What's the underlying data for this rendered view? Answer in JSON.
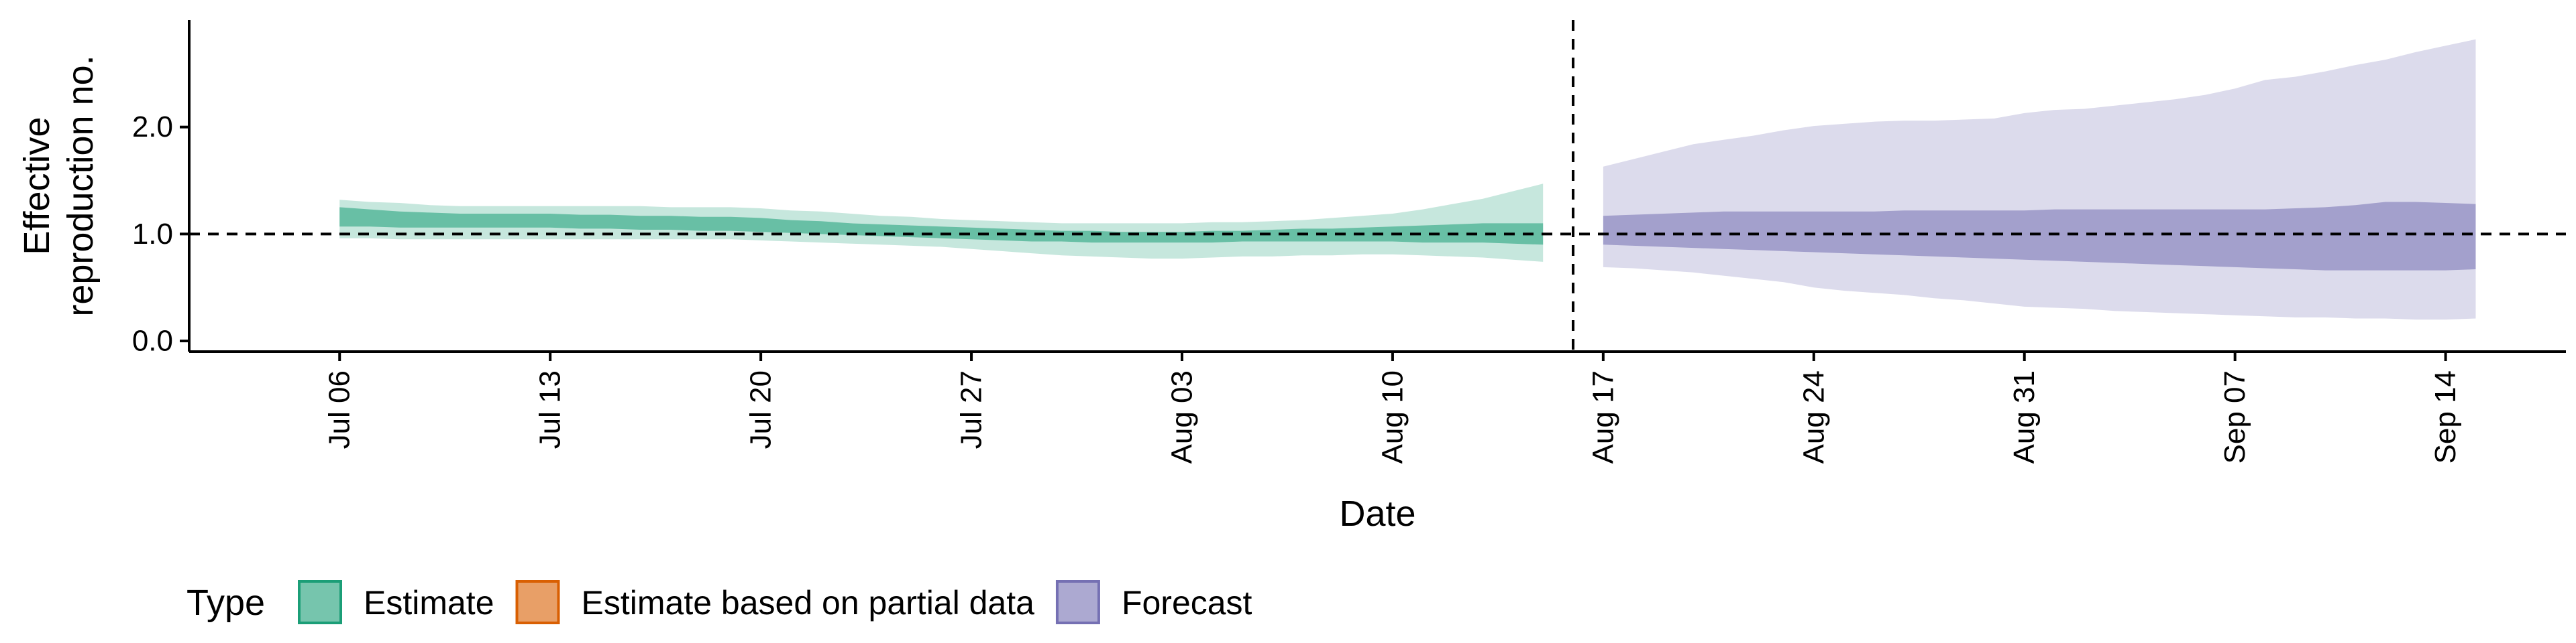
{
  "chart_data": {
    "type": "area",
    "ylabel_lines": [
      "Effective",
      "reproduction no."
    ],
    "xlabel": "Date",
    "ylim": [
      -0.1,
      3.0
    ],
    "y_ticks": [
      0.0,
      1.0,
      2.0
    ],
    "y_tick_labels": [
      "0.0",
      "1.0",
      "2.0"
    ],
    "xlim": [
      "2020-07-01",
      "2020-09-18"
    ],
    "x_ticks": [
      "2020-07-06",
      "2020-07-13",
      "2020-07-20",
      "2020-07-27",
      "2020-08-03",
      "2020-08-10",
      "2020-08-17",
      "2020-08-24",
      "2020-08-31",
      "2020-09-07",
      "2020-09-14"
    ],
    "x_tick_labels": [
      "Jul 06",
      "Jul 13",
      "Jul 20",
      "Jul 27",
      "Aug 03",
      "Aug 10",
      "Aug 17",
      "Aug 24",
      "Aug 31",
      "Sep 07",
      "Sep 14"
    ],
    "reference_line_y": 1.0,
    "vertical_line_x": "2020-08-16",
    "grid": false,
    "legend": {
      "title": "Type",
      "position": "bottom",
      "entries": [
        {
          "name": "Estimate",
          "color": "#1b9e77"
        },
        {
          "name": "Estimate based on partial data",
          "color": "#d95f02"
        },
        {
          "name": "Forecast",
          "color": "#7570b3"
        }
      ]
    },
    "series": [
      {
        "name": "Estimate",
        "color": "#1b9e77",
        "x": [
          "2020-07-06",
          "2020-07-07",
          "2020-07-08",
          "2020-07-09",
          "2020-07-10",
          "2020-07-11",
          "2020-07-12",
          "2020-07-13",
          "2020-07-14",
          "2020-07-15",
          "2020-07-16",
          "2020-07-17",
          "2020-07-18",
          "2020-07-19",
          "2020-07-20",
          "2020-07-21",
          "2020-07-22",
          "2020-07-23",
          "2020-07-24",
          "2020-07-25",
          "2020-07-26",
          "2020-07-27",
          "2020-07-28",
          "2020-07-29",
          "2020-07-30",
          "2020-07-31",
          "2020-08-01",
          "2020-08-02",
          "2020-08-03",
          "2020-08-04",
          "2020-08-05",
          "2020-08-06",
          "2020-08-07",
          "2020-08-08",
          "2020-08-09",
          "2020-08-10",
          "2020-08-11",
          "2020-08-12",
          "2020-08-13",
          "2020-08-14",
          "2020-08-15"
        ],
        "lower_90": [
          0.96,
          0.96,
          0.95,
          0.95,
          0.95,
          0.95,
          0.95,
          0.95,
          0.95,
          0.95,
          0.95,
          0.95,
          0.95,
          0.95,
          0.94,
          0.93,
          0.92,
          0.91,
          0.9,
          0.89,
          0.88,
          0.86,
          0.84,
          0.82,
          0.8,
          0.79,
          0.78,
          0.77,
          0.77,
          0.78,
          0.79,
          0.79,
          0.8,
          0.8,
          0.81,
          0.81,
          0.8,
          0.79,
          0.78,
          0.76,
          0.74
        ],
        "lower_50": [
          1.07,
          1.07,
          1.06,
          1.06,
          1.06,
          1.06,
          1.06,
          1.06,
          1.05,
          1.05,
          1.04,
          1.04,
          1.03,
          1.03,
          1.02,
          1.01,
          1.0,
          0.99,
          0.98,
          0.97,
          0.96,
          0.95,
          0.94,
          0.93,
          0.93,
          0.92,
          0.92,
          0.92,
          0.92,
          0.92,
          0.93,
          0.93,
          0.93,
          0.93,
          0.93,
          0.93,
          0.92,
          0.92,
          0.92,
          0.91,
          0.9
        ],
        "upper_50": [
          1.25,
          1.23,
          1.21,
          1.2,
          1.19,
          1.19,
          1.19,
          1.19,
          1.18,
          1.18,
          1.17,
          1.17,
          1.16,
          1.16,
          1.15,
          1.13,
          1.12,
          1.1,
          1.09,
          1.08,
          1.07,
          1.06,
          1.05,
          1.04,
          1.03,
          1.03,
          1.02,
          1.02,
          1.02,
          1.03,
          1.03,
          1.04,
          1.05,
          1.05,
          1.06,
          1.07,
          1.08,
          1.09,
          1.1,
          1.1,
          1.1
        ],
        "upper_90": [
          1.32,
          1.3,
          1.29,
          1.27,
          1.26,
          1.26,
          1.26,
          1.26,
          1.26,
          1.26,
          1.26,
          1.25,
          1.25,
          1.25,
          1.24,
          1.22,
          1.21,
          1.19,
          1.17,
          1.16,
          1.14,
          1.13,
          1.12,
          1.11,
          1.1,
          1.1,
          1.1,
          1.1,
          1.1,
          1.11,
          1.11,
          1.12,
          1.13,
          1.15,
          1.17,
          1.19,
          1.23,
          1.28,
          1.33,
          1.4,
          1.47
        ]
      },
      {
        "name": "Forecast",
        "color": "#7570b3",
        "x": [
          "2020-08-17",
          "2020-08-18",
          "2020-08-19",
          "2020-08-20",
          "2020-08-21",
          "2020-08-22",
          "2020-08-23",
          "2020-08-24",
          "2020-08-25",
          "2020-08-26",
          "2020-08-27",
          "2020-08-28",
          "2020-08-29",
          "2020-08-30",
          "2020-08-31",
          "2020-09-01",
          "2020-09-02",
          "2020-09-03",
          "2020-09-04",
          "2020-09-05",
          "2020-09-06",
          "2020-09-07",
          "2020-09-08",
          "2020-09-09",
          "2020-09-10",
          "2020-09-11",
          "2020-09-12",
          "2020-09-13",
          "2020-09-14",
          "2020-09-15"
        ],
        "lower_90": [
          0.69,
          0.68,
          0.66,
          0.64,
          0.61,
          0.58,
          0.55,
          0.5,
          0.47,
          0.45,
          0.43,
          0.4,
          0.38,
          0.35,
          0.32,
          0.31,
          0.3,
          0.28,
          0.27,
          0.26,
          0.25,
          0.24,
          0.23,
          0.22,
          0.22,
          0.21,
          0.21,
          0.2,
          0.2,
          0.21
        ],
        "lower_50": [
          0.9,
          0.89,
          0.88,
          0.87,
          0.86,
          0.85,
          0.84,
          0.83,
          0.82,
          0.81,
          0.8,
          0.79,
          0.78,
          0.77,
          0.76,
          0.75,
          0.74,
          0.73,
          0.72,
          0.71,
          0.7,
          0.69,
          0.68,
          0.67,
          0.66,
          0.66,
          0.66,
          0.66,
          0.66,
          0.67
        ],
        "upper_50": [
          1.17,
          1.18,
          1.19,
          1.2,
          1.21,
          1.21,
          1.21,
          1.21,
          1.21,
          1.21,
          1.22,
          1.22,
          1.22,
          1.22,
          1.22,
          1.23,
          1.23,
          1.23,
          1.23,
          1.23,
          1.23,
          1.23,
          1.23,
          1.24,
          1.25,
          1.27,
          1.3,
          1.3,
          1.29,
          1.28
        ],
        "upper_90": [
          1.63,
          1.7,
          1.77,
          1.84,
          1.88,
          1.92,
          1.97,
          2.01,
          2.03,
          2.05,
          2.06,
          2.06,
          2.07,
          2.08,
          2.13,
          2.16,
          2.17,
          2.2,
          2.23,
          2.26,
          2.3,
          2.36,
          2.44,
          2.47,
          2.52,
          2.58,
          2.63,
          2.7,
          2.76,
          2.82
        ]
      }
    ]
  }
}
